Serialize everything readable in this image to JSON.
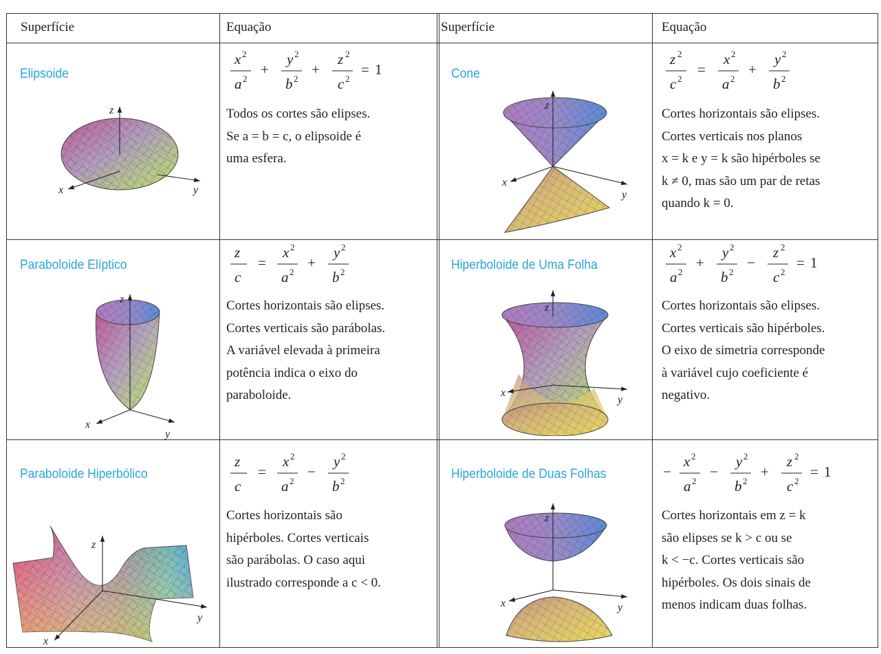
{
  "headers": {
    "surface_left": "Superfície",
    "equation_left": "Equação",
    "surface_right": "Superfície",
    "equation_right": "Equação"
  },
  "axes": {
    "x": "x",
    "y": "y",
    "z": "z"
  },
  "rows": [
    {
      "left": {
        "name": "Elipsoide",
        "desc_lines": [
          "Todos os cortes são elipses.",
          "Se a = b = c, o elipsoide é",
          "uma esfera."
        ]
      },
      "right": {
        "name": "Cone",
        "desc_lines": [
          "Cortes horizontais são elipses.",
          "Cortes verticais nos planos",
          "x = k e y = k são hipérboles se",
          "k ≠ 0, mas são um par de retas",
          "quando k = 0."
        ]
      }
    },
    {
      "left": {
        "name": "Paraboloide Elíptico",
        "desc_lines": [
          "Cortes horizontais são elipses.",
          "Cortes verticais são parábolas.",
          "A variável elevada à primeira",
          "potência indica o eixo do",
          "paraboloide."
        ]
      },
      "right": {
        "name": "Hiperboloide de Uma Folha",
        "desc_lines": [
          "Cortes horizontais são elipses.",
          "Cortes verticais são hipérboles.",
          "O eixo de simetria corresponde",
          "à variável cujo coeficiente é",
          "negativo."
        ]
      }
    },
    {
      "left": {
        "name": "Paraboloide Hiperbólico",
        "desc_lines": [
          "Cortes horizontais são",
          "hipérboles. Cortes verticais",
          "são parábolas. O caso aqui",
          "ilustrado corresponde a c < 0."
        ]
      },
      "right": {
        "name": "Hiperboloide de Duas Folhas",
        "desc_lines": [
          "Cortes horizontais em z = k",
          "são elipses se k > c ou se",
          "k < −c. Cortes verticais são",
          "hipérboles. Os dois sinais de",
          "menos indicam duas folhas."
        ]
      }
    }
  ],
  "equation_tokens": {
    "x2": "x",
    "y2": "y",
    "z2": "z",
    "a2": "a",
    "b2": "b",
    "c2": "c",
    "z": "z",
    "c": "c",
    "sq": "2",
    "plus": "+",
    "minus": "−",
    "eq": "=",
    "one": "1"
  }
}
